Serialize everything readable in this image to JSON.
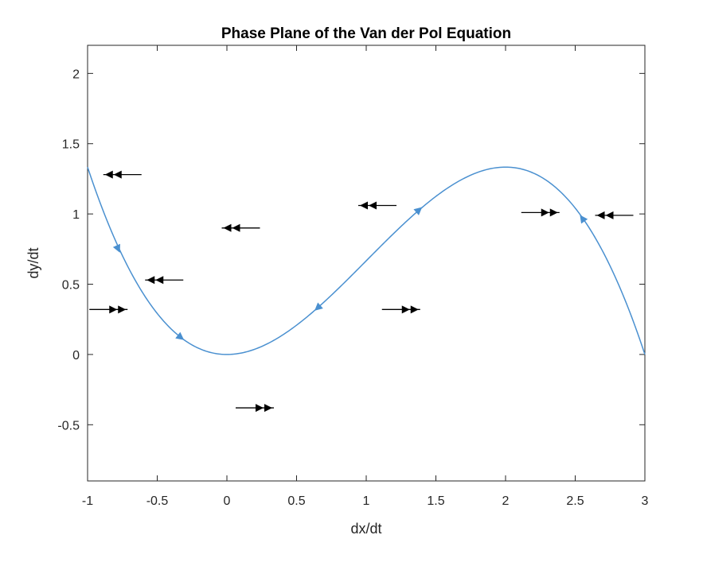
{
  "chart_data": {
    "type": "line",
    "title": "Phase Plane of the Van der Pol Equation",
    "xlabel": "dx/dt",
    "ylabel": "dy/dt",
    "xlim": [
      -1,
      3
    ],
    "ylim": [
      -0.9,
      2.2
    ],
    "x_ticks": [
      "-1",
      "-0.5",
      "0",
      "0.5",
      "1",
      "1.5",
      "2",
      "2.5",
      "3"
    ],
    "x_tick_values": [
      -1,
      -0.5,
      0,
      0.5,
      1,
      1.5,
      2,
      2.5,
      3
    ],
    "y_ticks": [
      "-0.5",
      "0",
      "0.5",
      "1",
      "1.5",
      "2"
    ],
    "y_tick_values": [
      -0.5,
      0,
      0.5,
      1,
      1.5,
      2
    ],
    "grid": false,
    "series": [
      {
        "curve": "y = x^2 - x^3/3",
        "x_range": [
          -1,
          3
        ],
        "color": "#4a90d0",
        "direction_marks": [
          {
            "x": -0.78,
            "y": 0.75,
            "dir": "down"
          },
          {
            "x": -0.33,
            "y": 0.12,
            "dir": "down"
          },
          {
            "x": 0.65,
            "y": 0.33,
            "dir": "down"
          },
          {
            "x": 1.38,
            "y": 1.03,
            "dir": "up"
          },
          {
            "x": 2.55,
            "y": 0.97,
            "dir": "up"
          }
        ]
      }
    ],
    "vector_arrows": [
      {
        "x": -0.75,
        "y": 1.28,
        "dir": "left"
      },
      {
        "x": 0.1,
        "y": 0.9,
        "dir": "left"
      },
      {
        "x": -0.45,
        "y": 0.53,
        "dir": "left"
      },
      {
        "x": -0.85,
        "y": 0.32,
        "dir": "right"
      },
      {
        "x": 0.2,
        "y": -0.38,
        "dir": "right"
      },
      {
        "x": 1.08,
        "y": 1.06,
        "dir": "left"
      },
      {
        "x": 1.25,
        "y": 0.32,
        "dir": "right"
      },
      {
        "x": 2.25,
        "y": 1.01,
        "dir": "right"
      },
      {
        "x": 2.78,
        "y": 0.99,
        "dir": "left"
      }
    ],
    "colors": {
      "curve": "#4a90d0",
      "arrows": "#000000",
      "axes": "#262626"
    }
  }
}
